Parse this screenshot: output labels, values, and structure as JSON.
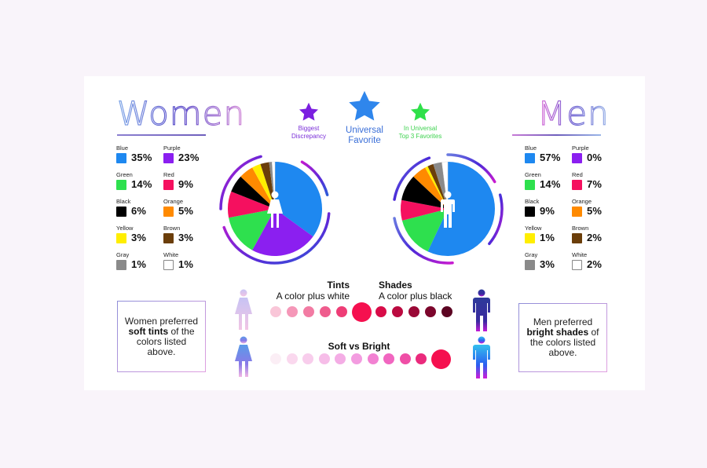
{
  "background": "#f9f4fa",
  "titles": {
    "women": "Women",
    "men": "Men"
  },
  "stars": {
    "biggest_discrepancy": {
      "label_line1": "Biggest",
      "label_line2": "Discrepancy",
      "color": "#7b1fe0"
    },
    "universal_favorite": {
      "label_line1": "Universal",
      "label_line2": "Favorite",
      "color": "#2f86ec"
    },
    "top3": {
      "label_line1": "In Universal",
      "label_line2": "Top 3 Favorites",
      "color": "#2fe04a"
    }
  },
  "colors": {
    "Blue": "#1e88f0",
    "Purple": "#8b1ff0",
    "Green": "#2ee04e",
    "Red": "#f5105f",
    "Black": "#000000",
    "Orange": "#ff8a00",
    "Yellow": "#ffee00",
    "Brown": "#6b3e0a",
    "Gray": "#8a8a8a",
    "White": "#ffffff"
  },
  "women": {
    "legend": [
      {
        "label": "Blue",
        "value": "35%"
      },
      {
        "label": "Purple",
        "value": "23%"
      },
      {
        "label": "Green",
        "value": "14%"
      },
      {
        "label": "Red",
        "value": "9%"
      },
      {
        "label": "Black",
        "value": "6%"
      },
      {
        "label": "Orange",
        "value": "5%"
      },
      {
        "label": "Yellow",
        "value": "3%"
      },
      {
        "label": "Brown",
        "value": "3%"
      },
      {
        "label": "Gray",
        "value": "1%"
      },
      {
        "label": "White",
        "value": "1%"
      }
    ],
    "note": {
      "pre": "Women preferred",
      "bold": "soft tints",
      "post": "of the colors listed above."
    }
  },
  "men": {
    "legend": [
      {
        "label": "Blue",
        "value": "57%"
      },
      {
        "label": "Purple",
        "value": "0%"
      },
      {
        "label": "Green",
        "value": "14%"
      },
      {
        "label": "Red",
        "value": "7%"
      },
      {
        "label": "Black",
        "value": "9%"
      },
      {
        "label": "Orange",
        "value": "5%"
      },
      {
        "label": "Yellow",
        "value": "1%"
      },
      {
        "label": "Brown",
        "value": "2%"
      },
      {
        "label": "Gray",
        "value": "3%"
      },
      {
        "label": "White",
        "value": "2%"
      }
    ],
    "note": {
      "pre": "Men preferred",
      "bold": "bright shades",
      "post": "of the colors listed above."
    }
  },
  "scales": {
    "tints_title": "Tints",
    "tints_sub": "A color plus white",
    "shades_title": "Shades",
    "shades_sub": "A color plus black",
    "soft_bright_title": "Soft vs Bright",
    "tints_shades_dots": [
      "#f9c6d8",
      "#f597b8",
      "#f27ba3",
      "#ef5c8d",
      "#ee3d76",
      "#f5104f",
      "#d80c48",
      "#bb0a40",
      "#9a0836",
      "#7c062c",
      "#5c0422"
    ],
    "soft_bright_dots": [
      "#fbeef5",
      "#fad8ee",
      "#f8cdec",
      "#f6bde8",
      "#f4ade5",
      "#f39ce0",
      "#f281d2",
      "#f166c0",
      "#ef4ea6",
      "#ea2a7c",
      "#f5104f"
    ]
  },
  "chart_data": [
    {
      "type": "pie",
      "title": "Women",
      "categories": [
        "Blue",
        "Purple",
        "Green",
        "Red",
        "Black",
        "Orange",
        "Yellow",
        "Brown",
        "Gray",
        "White"
      ],
      "values": [
        35,
        23,
        14,
        9,
        6,
        5,
        3,
        3,
        1,
        1
      ],
      "unit": "%"
    },
    {
      "type": "pie",
      "title": "Men",
      "categories": [
        "Blue",
        "Purple",
        "Green",
        "Red",
        "Black",
        "Orange",
        "Yellow",
        "Brown",
        "Gray",
        "White"
      ],
      "values": [
        57,
        0,
        14,
        7,
        9,
        5,
        1,
        2,
        3,
        2
      ],
      "unit": "%"
    }
  ]
}
